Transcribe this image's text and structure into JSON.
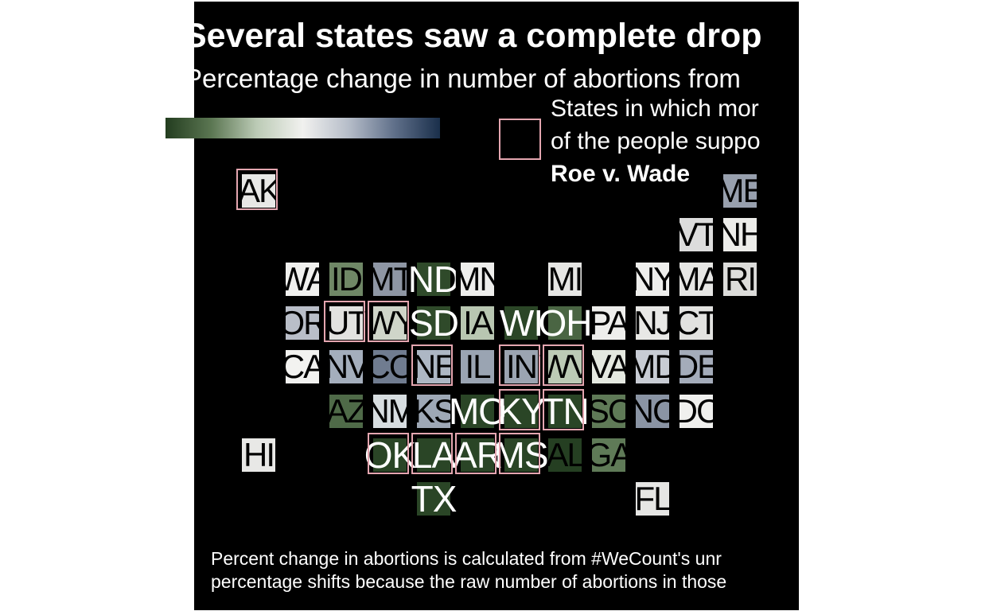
{
  "chart_data": {
    "type": "heatmap",
    "title": "Several states saw a complete drop",
    "subtitle": "Percentage change in number of abortions from",
    "legend": {
      "fill_label": "",
      "outline_label_lines": [
        "States in which mor",
        "of the people suppo"
      ],
      "outline_label_bold": "Roe v. Wade",
      "outline_color": "#e4a6b0",
      "gradient_colors": [
        "#233d1f",
        "#5b7652",
        "#bccbb6",
        "#f1f1ef",
        "#b6bdc9",
        "#60708a",
        "#1a2f4b"
      ]
    },
    "footnote_lines": [
      "Percent change in abortions is calculated from #WeCount's unr",
      "percentage shifts because the raw number of abortions in those"
    ],
    "states": [
      {
        "label": "AK",
        "fill": "#e8e8e6",
        "outlined": true,
        "big": false
      },
      {
        "label": "ME",
        "fill": "#98a0ae",
        "outlined": false,
        "big": false
      },
      {
        "label": "VT",
        "fill": "#dcdcdc",
        "outlined": false,
        "big": false
      },
      {
        "label": "NH",
        "fill": "#ecece9",
        "outlined": false,
        "big": false
      },
      {
        "label": "WA",
        "fill": "#f0f0ee",
        "outlined": false,
        "big": false
      },
      {
        "label": "ID",
        "fill": "#6f8766",
        "outlined": false,
        "big": false
      },
      {
        "label": "MT",
        "fill": "#8e96a4",
        "outlined": false,
        "big": false
      },
      {
        "label": "ND",
        "fill": "#2f4a2a",
        "outlined": false,
        "big": true
      },
      {
        "label": "MN",
        "fill": "#eeeeec",
        "outlined": false,
        "big": false
      },
      {
        "label": "MI",
        "fill": "#e6e6e4",
        "outlined": false,
        "big": false
      },
      {
        "label": "NY",
        "fill": "#eeeeec",
        "outlined": false,
        "big": false
      },
      {
        "label": "MA",
        "fill": "#e6e6e4",
        "outlined": false,
        "big": false
      },
      {
        "label": "RI",
        "fill": "#dcdcda",
        "outlined": false,
        "big": false
      },
      {
        "label": "OR",
        "fill": "#b9bec8",
        "outlined": false,
        "big": false
      },
      {
        "label": "UT",
        "fill": "#e2e2e0",
        "outlined": true,
        "big": false
      },
      {
        "label": "WY",
        "fill": "#cfd5c9",
        "outlined": true,
        "big": false
      },
      {
        "label": "SD",
        "fill": "#2f4a2a",
        "outlined": false,
        "big": true
      },
      {
        "label": "IA",
        "fill": "#b8c6b1",
        "outlined": false,
        "big": false
      },
      {
        "label": "WI",
        "fill": "#2b4627",
        "outlined": false,
        "big": true
      },
      {
        "label": "OH",
        "fill": "#4a6543",
        "outlined": false,
        "big": true
      },
      {
        "label": "PA",
        "fill": "#eeeeec",
        "outlined": false,
        "big": false
      },
      {
        "label": "NJ",
        "fill": "#e8e8e6",
        "outlined": false,
        "big": false
      },
      {
        "label": "CT",
        "fill": "#e2e2e0",
        "outlined": false,
        "big": false
      },
      {
        "label": "CA",
        "fill": "#f2f2f0",
        "outlined": false,
        "big": false
      },
      {
        "label": "NV",
        "fill": "#a4aebc",
        "outlined": false,
        "big": false
      },
      {
        "label": "CO",
        "fill": "#707c90",
        "outlined": false,
        "big": false
      },
      {
        "label": "NE",
        "fill": "#adb7c4",
        "outlined": true,
        "big": false
      },
      {
        "label": "IL",
        "fill": "#9aa4b2",
        "outlined": false,
        "big": false
      },
      {
        "label": "IN",
        "fill": "#9ba4b1",
        "outlined": true,
        "big": false
      },
      {
        "label": "WV",
        "fill": "#bccab5",
        "outlined": true,
        "big": false
      },
      {
        "label": "VA",
        "fill": "#e4e8e0",
        "outlined": false,
        "big": false
      },
      {
        "label": "MD",
        "fill": "#c8ccd4",
        "outlined": false,
        "big": false
      },
      {
        "label": "DE",
        "fill": "#a4acba",
        "outlined": false,
        "big": false
      },
      {
        "label": "AZ",
        "fill": "#4f6a48",
        "outlined": false,
        "big": false
      },
      {
        "label": "NM",
        "fill": "#d7dde0",
        "outlined": false,
        "big": false
      },
      {
        "label": "KS",
        "fill": "#9ea8b6",
        "outlined": false,
        "big": false
      },
      {
        "label": "MO",
        "fill": "#2a4526",
        "outlined": false,
        "big": true
      },
      {
        "label": "KY",
        "fill": "#2a4526",
        "outlined": true,
        "big": true
      },
      {
        "label": "TN",
        "fill": "#2a4526",
        "outlined": true,
        "big": true
      },
      {
        "label": "SC",
        "fill": "#5f7a57",
        "outlined": false,
        "big": false
      },
      {
        "label": "NC",
        "fill": "#8a94a4",
        "outlined": false,
        "big": false
      },
      {
        "label": "DC",
        "fill": "#f0f0ee",
        "outlined": false,
        "big": false
      },
      {
        "label": "HI",
        "fill": "#e8e8e6",
        "outlined": false,
        "big": false
      },
      {
        "label": "OK",
        "fill": "#2a4526",
        "outlined": true,
        "big": true
      },
      {
        "label": "LA",
        "fill": "#2a4526",
        "outlined": true,
        "big": true
      },
      {
        "label": "AR",
        "fill": "#2a4526",
        "outlined": true,
        "big": true
      },
      {
        "label": "MS",
        "fill": "#2a4526",
        "outlined": true,
        "big": true
      },
      {
        "label": "AL",
        "fill": "#253f22",
        "outlined": false,
        "big": false
      },
      {
        "label": "GA",
        "fill": "#5f7a57",
        "outlined": false,
        "big": false
      },
      {
        "label": "TX",
        "fill": "#2a4526",
        "outlined": false,
        "big": true
      },
      {
        "label": "FL",
        "fill": "#e6e6e4",
        "outlined": false,
        "big": false
      }
    ]
  }
}
